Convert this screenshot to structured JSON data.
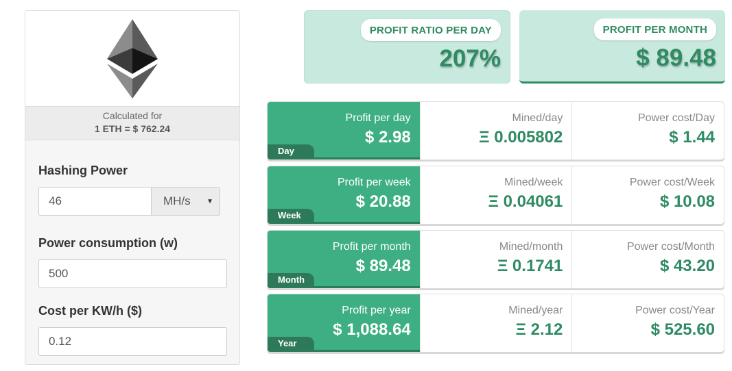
{
  "calculator": {
    "calculated_for_label": "Calculated for",
    "rate_text": "1 ETH = $ 762.24",
    "logo_icon": "ethereum-logo-icon",
    "hashing_power": {
      "label": "Hashing Power",
      "value": "46",
      "unit": "MH/s"
    },
    "power_consumption": {
      "label": "Power consumption (w)",
      "value": "500"
    },
    "cost_per_kwh": {
      "label": "Cost per KW/h ($)",
      "value": "0.12"
    }
  },
  "summary": {
    "ratio": {
      "label": "PROFIT RATIO PER DAY",
      "value": "207%"
    },
    "month": {
      "label": "PROFIT PER MONTH",
      "value": "$ 89.48"
    }
  },
  "rows": [
    {
      "tag": "Day",
      "profit_label": "Profit per day",
      "profit": "$ 2.98",
      "mined_label": "Mined/day",
      "mined": "Ξ 0.005802",
      "power_label": "Power cost/Day",
      "power": "$ 1.44"
    },
    {
      "tag": "Week",
      "profit_label": "Profit per week",
      "profit": "$ 20.88",
      "mined_label": "Mined/week",
      "mined": "Ξ 0.04061",
      "power_label": "Power cost/Week",
      "power": "$ 10.08"
    },
    {
      "tag": "Month",
      "profit_label": "Profit per month",
      "profit": "$ 89.48",
      "mined_label": "Mined/month",
      "mined": "Ξ 0.1741",
      "power_label": "Power cost/Month",
      "power": "$ 43.20"
    },
    {
      "tag": "Year",
      "profit_label": "Profit per year",
      "profit": "$ 1,088.64",
      "mined_label": "Mined/year",
      "mined": "Ξ 2.12",
      "power_label": "Power cost/Year",
      "power": "$ 525.60"
    }
  ],
  "colors": {
    "accent": "#3daf82",
    "accent_dark": "#2e8b62",
    "card_bg": "#c8e9de"
  }
}
